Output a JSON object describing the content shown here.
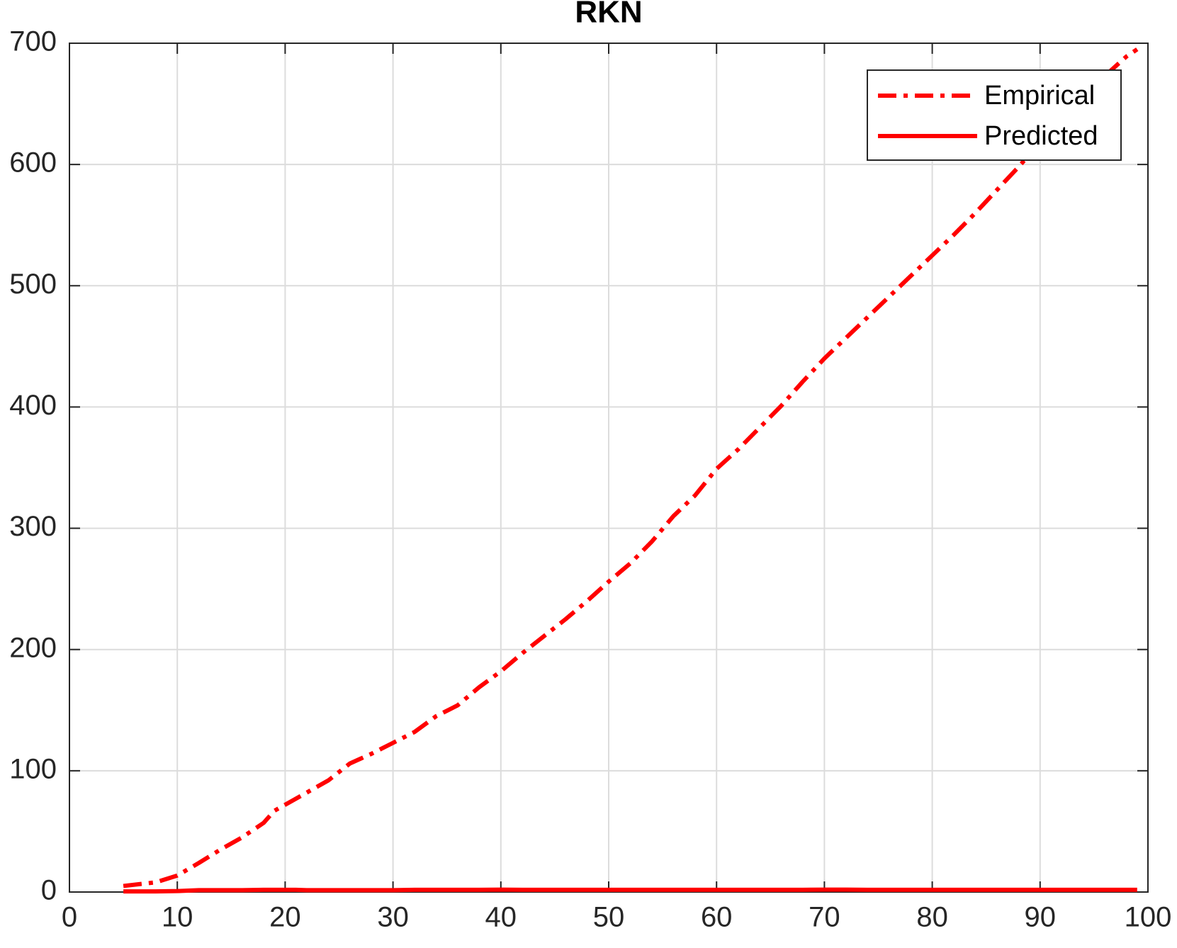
{
  "chart_data": {
    "type": "line",
    "title": "RKN",
    "x": [
      5,
      8,
      10,
      12,
      14,
      16,
      18,
      19,
      21,
      22,
      24,
      26,
      28,
      30,
      32,
      34,
      36,
      38,
      40,
      42,
      44,
      46,
      48,
      50,
      52,
      54,
      56,
      58,
      60,
      62,
      64,
      66,
      68,
      70,
      72,
      74,
      76,
      78,
      80,
      82,
      84,
      86,
      88,
      90,
      92,
      94,
      96,
      98,
      99
    ],
    "series": [
      {
        "name": "Empirical",
        "color": "#ff0000",
        "style": "dashdot",
        "values": [
          5,
          8,
          13.6,
          24,
          35,
          45,
          57,
          67,
          77,
          82,
          92,
          106,
          114,
          123,
          132,
          145,
          154,
          169,
          182,
          197,
          211,
          225,
          240,
          256,
          271,
          289,
          310,
          327,
          349,
          365,
          383,
          401,
          421,
          440,
          457,
          474,
          491,
          508,
          525,
          542,
          560,
          579,
          598,
          618,
          637,
          656,
          673,
          689,
          695
        ]
      },
      {
        "name": "Predicted",
        "color": "#ff0000",
        "style": "solid",
        "values": [
          0.5,
          0.5,
          0.8,
          1.5,
          1.5,
          1.5,
          1.8,
          1.8,
          1.8,
          1.5,
          1.5,
          1.5,
          1.5,
          1.5,
          1.8,
          1.8,
          1.8,
          1.8,
          2,
          1.8,
          1.8,
          1.8,
          1.8,
          1.8,
          1.8,
          1.8,
          1.8,
          1.8,
          1.8,
          1.8,
          1.8,
          1.8,
          1.8,
          2,
          2,
          1.8,
          1.8,
          1.8,
          1.8,
          1.8,
          1.8,
          1.8,
          1.8,
          1.8,
          1.8,
          1.8,
          1.8,
          1.8,
          1.8
        ]
      }
    ],
    "xlim": [
      0,
      100
    ],
    "xticks": [
      0,
      10,
      20,
      30,
      40,
      50,
      60,
      70,
      80,
      90,
      100
    ],
    "ylim": [
      0,
      700
    ],
    "yticks": [
      0,
      100,
      200,
      300,
      400,
      500,
      600,
      700
    ],
    "grid": true,
    "legend": "northeast"
  }
}
